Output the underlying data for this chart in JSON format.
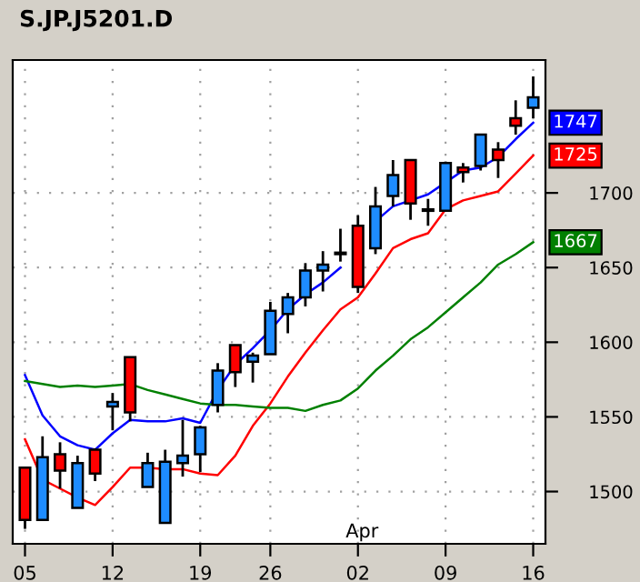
{
  "chart_data": {
    "type": "candlestick",
    "title": "S.JP.J5201.D",
    "categories": [
      "05",
      null,
      null,
      null,
      null,
      "12",
      null,
      null,
      null,
      null,
      "19",
      null,
      null,
      null,
      "26",
      null,
      null,
      null,
      null,
      "02",
      null,
      null,
      null,
      null,
      "09",
      null,
      null,
      null,
      null,
      "16"
    ],
    "ohlc": [
      [
        1516,
        1516,
        1475,
        1481
      ],
      [
        1481,
        1537,
        1481,
        1523
      ],
      [
        1525,
        1533,
        1502,
        1514
      ],
      [
        1489,
        1524,
        1489,
        1519
      ],
      [
        1528,
        1529,
        1507,
        1512
      ],
      [
        1557,
        1566,
        1541,
        1560
      ],
      [
        1590,
        1590,
        1547,
        1553
      ],
      [
        1503,
        1526,
        1503,
        1519
      ],
      [
        1479,
        1528,
        1479,
        1520
      ],
      [
        1519,
        1548,
        1510,
        1524
      ],
      [
        1525,
        1544,
        1513,
        1543
      ],
      [
        1558,
        1586,
        1553,
        1581
      ],
      [
        1598,
        1598,
        1570,
        1580
      ],
      [
        1587,
        1593,
        1573,
        1591
      ],
      [
        1592,
        1627,
        1592,
        1621
      ],
      [
        1619,
        1633,
        1606,
        1630
      ],
      [
        1630,
        1653,
        1624,
        1648
      ],
      [
        1648,
        1661,
        1634,
        1652
      ],
      [
        1659,
        1676,
        1654,
        1660
      ],
      [
        1678,
        1685,
        1633,
        1637
      ],
      [
        1663,
        1704,
        1659,
        1691
      ],
      [
        1698,
        1722,
        1691,
        1712
      ],
      [
        1722,
        1722,
        1682,
        1693
      ],
      [
        1688,
        1696,
        1678,
        1689
      ],
      [
        1688,
        1721,
        1688,
        1720
      ],
      [
        1717,
        1720,
        1707,
        1714
      ],
      [
        1718,
        1739,
        1715,
        1739
      ],
      [
        1729,
        1734,
        1710,
        1722
      ],
      [
        1750,
        1762,
        1739,
        1745
      ],
      [
        1757,
        1778,
        1750,
        1764
      ]
    ],
    "colors": [
      "#ff0000",
      "#1e8cff",
      "#ff0000",
      "#1e8cff",
      "#ff0000",
      "#1e8cff",
      "#ff0000",
      "#1e8cff",
      "#1e8cff",
      "#1e8cff",
      "#1e8cff",
      "#1e8cff",
      "#ff0000",
      "#1e8cff",
      "#1e8cff",
      "#1e8cff",
      "#1e8cff",
      "#1e8cff",
      "#1e8cff",
      "#ff0000",
      "#1e8cff",
      "#1e8cff",
      "#ff0000",
      "#1e8cff",
      "#1e8cff",
      "#ff0000",
      "#1e8cff",
      "#ff0000",
      "#ff0000",
      "#1e8cff"
    ],
    "series": [
      {
        "type": "line",
        "color": "#0000ff",
        "values": [
          1578,
          1551,
          1537,
          1531,
          1528,
          1539,
          1548,
          1547,
          1547,
          1549,
          1546,
          1568,
          1585,
          1596,
          1608,
          1622,
          1632,
          1640,
          1650,
          null,
          1681,
          1691,
          1695,
          1699,
          1707,
          1715,
          1717,
          1724,
          1736,
          1747
        ],
        "value_labels": [
          null,
          null,
          null,
          null,
          null,
          null,
          null,
          null,
          null,
          null,
          null,
          null,
          null,
          null,
          null,
          null,
          null,
          null,
          null,
          null,
          null,
          null,
          null,
          null,
          null,
          null,
          null,
          null,
          null,
          "1747"
        ]
      },
      {
        "type": "line",
        "color": "#ff0000",
        "values": [
          1535,
          1508,
          1502,
          1496,
          1491,
          1503,
          1516,
          1516,
          1515,
          1515,
          1512,
          1511,
          1524,
          1544,
          1559,
          1577,
          1593,
          1608,
          1622,
          1630,
          1646,
          1663,
          1669,
          1673,
          1689,
          1695,
          1698,
          1701,
          1713,
          1725
        ],
        "value_labels": [
          null,
          null,
          null,
          null,
          null,
          null,
          null,
          null,
          null,
          null,
          null,
          null,
          null,
          null,
          null,
          null,
          null,
          null,
          null,
          null,
          null,
          null,
          null,
          null,
          null,
          null,
          null,
          null,
          null,
          "1725"
        ]
      },
      {
        "type": "line",
        "color": "#008000",
        "values": [
          1574,
          1572,
          1570,
          1571,
          1570,
          1571,
          1572,
          1568,
          1565,
          1562,
          1559,
          1558,
          1558,
          1557,
          1556,
          1556,
          1554,
          1558,
          1561,
          1569,
          1581,
          1591,
          1602,
          1610,
          1620,
          1630,
          1640,
          1652,
          1659,
          1667
        ],
        "value_labels": [
          null,
          null,
          null,
          null,
          null,
          null,
          null,
          null,
          null,
          null,
          null,
          null,
          null,
          null,
          null,
          null,
          null,
          null,
          null,
          null,
          null,
          null,
          null,
          null,
          null,
          null,
          null,
          null,
          null,
          "1667"
        ]
      }
    ],
    "ylim": [
      1465,
      1789
    ],
    "yticks": [
      1500,
      1550,
      1600,
      1650,
      1700
    ],
    "grid": true,
    "annotations": [
      "Apr"
    ]
  }
}
